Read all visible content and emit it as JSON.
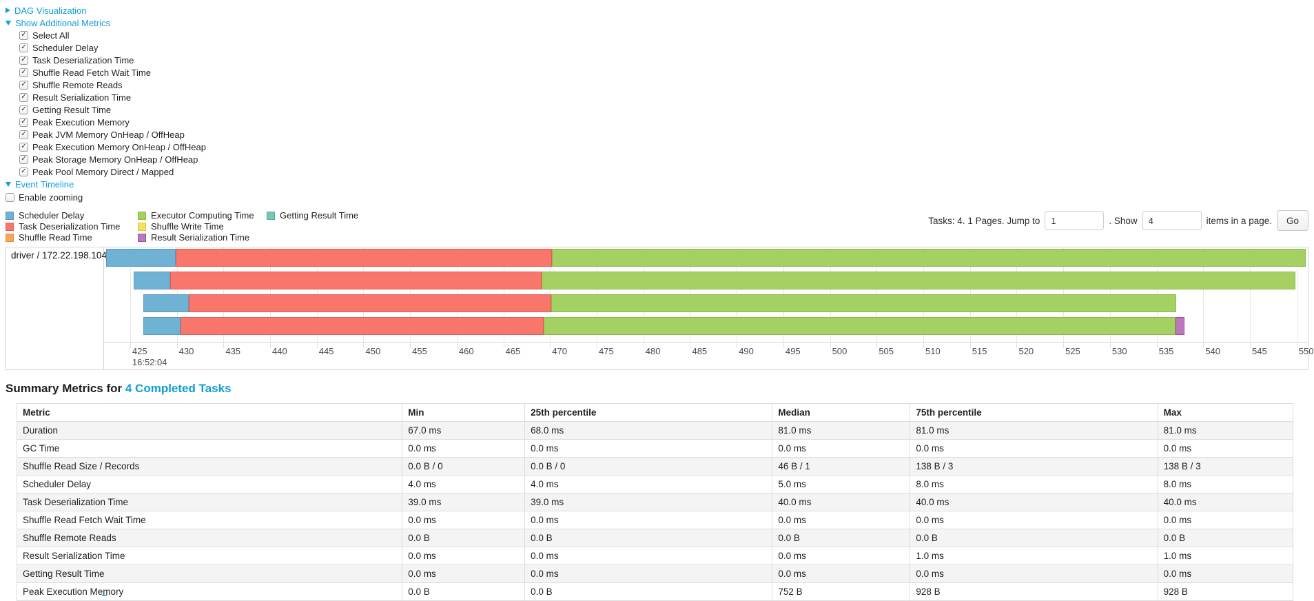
{
  "colors": {
    "link": "#0f9ed8",
    "scheduler_delay": {
      "fill": "#6FB2D4",
      "border": "#5699C6"
    },
    "task_deser": {
      "fill": "#F9766D",
      "border": "#E35B52"
    },
    "shuffle_read": {
      "fill": "#F9A65C",
      "border": "#E78A36"
    },
    "exec_computing": {
      "fill": "#A5D063",
      "border": "#8BB944"
    },
    "shuffle_write": {
      "fill": "#F3E35C",
      "border": "#D9C93E"
    },
    "result_ser": {
      "fill": "#BD77BD",
      "border": "#9C4E9C"
    },
    "getting_result": {
      "fill": "#76C7B7",
      "border": "#53AE9B"
    }
  },
  "controls": {
    "dag_link": "DAG Visualization",
    "metrics_link": "Show Additional Metrics",
    "metrics_options": [
      "Select All",
      "Scheduler Delay",
      "Task Deserialization Time",
      "Shuffle Read Fetch Wait Time",
      "Shuffle Remote Reads",
      "Result Serialization Time",
      "Getting Result Time",
      "Peak Execution Memory",
      "Peak JVM Memory OnHeap / OffHeap",
      "Peak Execution Memory OnHeap / OffHeap",
      "Peak Storage Memory OnHeap / OffHeap",
      "Peak Pool Memory Direct / Mapped"
    ],
    "timeline_link": "Event Timeline",
    "enable_zooming": "Enable zooming"
  },
  "timeline": {
    "legend_columns": [
      [
        {
          "label": "Scheduler Delay",
          "key": "scheduler_delay"
        },
        {
          "label": "Task Deserialization Time",
          "key": "task_deser"
        },
        {
          "label": "Shuffle Read Time",
          "key": "shuffle_read"
        }
      ],
      [
        {
          "label": "Executor Computing Time",
          "key": "exec_computing"
        },
        {
          "label": "Shuffle Write Time",
          "key": "shuffle_write"
        },
        {
          "label": "Result Serialization Time",
          "key": "result_ser"
        }
      ],
      [
        {
          "label": "Getting Result Time",
          "key": "getting_result"
        }
      ]
    ],
    "pagination": {
      "prefix": "Tasks: 4. 1 Pages. Jump to",
      "jump_value": "1",
      "mid": ". Show",
      "show_value": "4",
      "suffix": "items in a page.",
      "go_label": "Go"
    },
    "group_label": "driver / 172.22.198.104",
    "axis": {
      "min": 422.2,
      "max": 551.2,
      "tick_start": 425,
      "tick_end": 550,
      "tick_step": 5,
      "major_label": "16:52:04"
    },
    "bars": [
      {
        "segments": [
          {
            "type": "scheduler_delay",
            "start": 422.4,
            "end": 429.9
          },
          {
            "type": "task_deser",
            "start": 429.9,
            "end": 470.2
          },
          {
            "type": "exec_computing",
            "start": 470.2,
            "end": 551.0
          }
        ]
      },
      {
        "segments": [
          {
            "type": "scheduler_delay",
            "start": 425.4,
            "end": 429.3
          },
          {
            "type": "task_deser",
            "start": 429.3,
            "end": 469.1
          },
          {
            "type": "exec_computing",
            "start": 469.1,
            "end": 549.9
          }
        ]
      },
      {
        "segments": [
          {
            "type": "scheduler_delay",
            "start": 426.4,
            "end": 431.3
          },
          {
            "type": "task_deser",
            "start": 431.3,
            "end": 470.1
          },
          {
            "type": "exec_computing",
            "start": 470.1,
            "end": 537.1
          }
        ]
      },
      {
        "segments": [
          {
            "type": "scheduler_delay",
            "start": 426.4,
            "end": 430.4
          },
          {
            "type": "task_deser",
            "start": 430.4,
            "end": 469.3
          },
          {
            "type": "exec_computing",
            "start": 469.3,
            "end": 537.0
          },
          {
            "type": "result_ser",
            "start": 537.0,
            "end": 538.0
          }
        ]
      }
    ]
  },
  "summary": {
    "title_prefix": "Summary Metrics for",
    "title_link": "4 Completed Tasks",
    "columns": [
      {
        "label": "Metric",
        "width": "30.2%"
      },
      {
        "label": "Min",
        "width": "9.6%"
      },
      {
        "label": "25th percentile",
        "width": "19.4%"
      },
      {
        "label": "Median",
        "width": "10.8%"
      },
      {
        "label": "75th percentile",
        "width": "19.4%"
      },
      {
        "label": "Max",
        "width": "10.6%"
      }
    ],
    "rows": [
      {
        "metric": "Duration",
        "values": [
          "67.0 ms",
          "68.0 ms",
          "81.0 ms",
          "81.0 ms",
          "81.0 ms"
        ]
      },
      {
        "metric": "GC Time",
        "values": [
          "0.0 ms",
          "0.0 ms",
          "0.0 ms",
          "0.0 ms",
          "0.0 ms"
        ]
      },
      {
        "metric": "Shuffle Read Size / Records",
        "values": [
          "0.0 B / 0",
          "0.0 B / 0",
          "46 B / 1",
          "138 B / 3",
          "138 B / 3"
        ]
      },
      {
        "metric": "Scheduler Delay",
        "values": [
          "4.0 ms",
          "4.0 ms",
          "5.0 ms",
          "8.0 ms",
          "8.0 ms"
        ]
      },
      {
        "metric": "Task Deserialization Time",
        "values": [
          "39.0 ms",
          "39.0 ms",
          "40.0 ms",
          "40.0 ms",
          "40.0 ms"
        ]
      },
      {
        "metric": "Shuffle Read Fetch Wait Time",
        "values": [
          "0.0 ms",
          "0.0 ms",
          "0.0 ms",
          "0.0 ms",
          "0.0 ms"
        ]
      },
      {
        "metric": "Shuffle Remote Reads",
        "values": [
          "0.0 B",
          "0.0 B",
          "0.0 B",
          "0.0 B",
          "0.0 B"
        ]
      },
      {
        "metric": "Result Serialization Time",
        "values": [
          "0.0 ms",
          "0.0 ms",
          "0.0 ms",
          "1.0 ms",
          "1.0 ms"
        ]
      },
      {
        "metric": "Getting Result Time",
        "values": [
          "0.0 ms",
          "0.0 ms",
          "0.0 ms",
          "0.0 ms",
          "0.0 ms"
        ]
      },
      {
        "metric": "Peak Execution Memory",
        "values": [
          "0.0 B",
          "0.0 B",
          "752 B",
          "928 B",
          "928 B"
        ]
      }
    ]
  }
}
